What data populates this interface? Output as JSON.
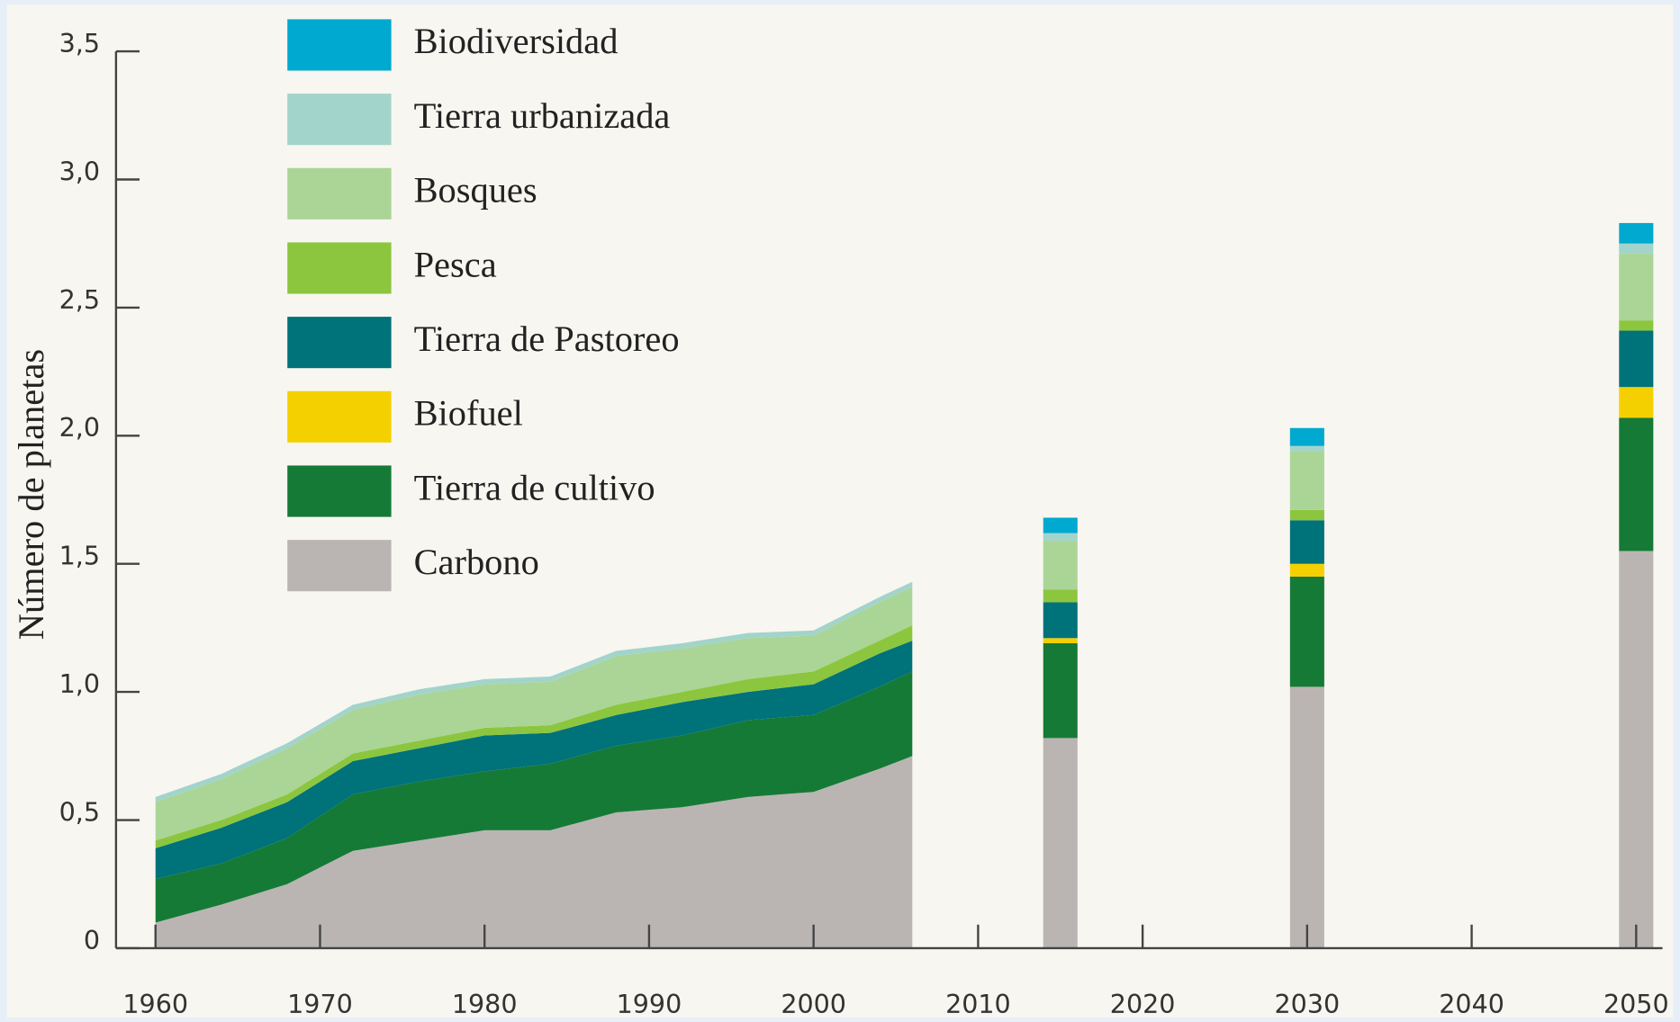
{
  "chart_data": [
    {
      "type": "area",
      "ylabel": "Número de planetas",
      "x": [
        1960,
        1964,
        1968,
        1972,
        1976,
        1980,
        1984,
        1988,
        1992,
        1996,
        2000,
        2004,
        2006
      ],
      "xlim": [
        1957.6,
        2051.6
      ],
      "xticks": [
        1960,
        1970,
        1980,
        1990,
        2000,
        2010,
        2020,
        2030,
        2040,
        2050
      ],
      "ylim": [
        0,
        3.5
      ],
      "yticks": [
        0,
        {
          "value": 0.5,
          "label": "0,5"
        },
        {
          "value": 1,
          "label": "1,0"
        },
        {
          "value": 1.5,
          "label": "1,5"
        },
        {
          "value": 2,
          "label": "2,0"
        },
        {
          "value": 2.5,
          "label": "2,5"
        },
        {
          "value": 3,
          "label": "3,0"
        },
        {
          "value": 3.5,
          "label": "3,5"
        }
      ],
      "legend": "upper left",
      "series": [
        {
          "name": "Carbono",
          "color": "#bab5b3",
          "values": [
            0.1,
            0.17,
            0.25,
            0.38,
            0.42,
            0.46,
            0.46,
            0.53,
            0.55,
            0.59,
            0.61,
            0.7,
            0.75
          ]
        },
        {
          "name": "Tierra de cultivo",
          "color": "#157a36",
          "values": [
            0.17,
            0.16,
            0.18,
            0.22,
            0.23,
            0.23,
            0.26,
            0.26,
            0.28,
            0.3,
            0.3,
            0.32,
            0.33
          ]
        },
        {
          "name": "Biofuel",
          "color": "#f5d000",
          "values": [
            0,
            0,
            0,
            0,
            0,
            0,
            0,
            0,
            0,
            0,
            0,
            0,
            0
          ]
        },
        {
          "name": "Tierra de Pastoreo",
          "color": "#00727a",
          "values": [
            0.12,
            0.14,
            0.14,
            0.13,
            0.13,
            0.14,
            0.12,
            0.12,
            0.13,
            0.11,
            0.12,
            0.13,
            0.12
          ]
        },
        {
          "name": "Pesca",
          "color": "#8cc63f",
          "values": [
            0.03,
            0.03,
            0.03,
            0.03,
            0.03,
            0.03,
            0.03,
            0.04,
            0.04,
            0.05,
            0.05,
            0.05,
            0.06
          ]
        },
        {
          "name": "Bosques",
          "color": "#aad596",
          "values": [
            0.15,
            0.16,
            0.18,
            0.17,
            0.18,
            0.17,
            0.17,
            0.19,
            0.17,
            0.16,
            0.14,
            0.15,
            0.15
          ]
        },
        {
          "name": "Tierra urbanizada",
          "color": "#a2d4cb",
          "values": [
            0.02,
            0.02,
            0.02,
            0.02,
            0.02,
            0.02,
            0.02,
            0.02,
            0.02,
            0.02,
            0.02,
            0.02,
            0.02
          ]
        },
        {
          "name": "Biodiversidad",
          "color": "#00a9d0",
          "values": [
            0,
            0,
            0,
            0,
            0,
            0,
            0,
            0,
            0,
            0,
            0,
            0,
            0
          ]
        }
      ]
    },
    {
      "type": "bar",
      "x": [
        2015,
        2030,
        2050
      ],
      "series": [
        {
          "color": "#bab5b3",
          "values": [
            0.82,
            1.02,
            1.55
          ]
        },
        {
          "color": "#157a36",
          "values": [
            0.37,
            0.43,
            0.52
          ]
        },
        {
          "color": "#f5d000",
          "values": [
            0.02,
            0.05,
            0.12
          ]
        },
        {
          "color": "#00727a",
          "values": [
            0.14,
            0.17,
            0.22
          ]
        },
        {
          "color": "#8cc63f",
          "values": [
            0.05,
            0.04,
            0.04
          ]
        },
        {
          "color": "#aad596",
          "values": [
            0.19,
            0.23,
            0.26
          ]
        },
        {
          "color": "#a2d4cb",
          "values": [
            0.03,
            0.02,
            0.04
          ]
        },
        {
          "color": "#00a9d0",
          "values": [
            0.06,
            0.07,
            0.08
          ]
        }
      ]
    }
  ]
}
